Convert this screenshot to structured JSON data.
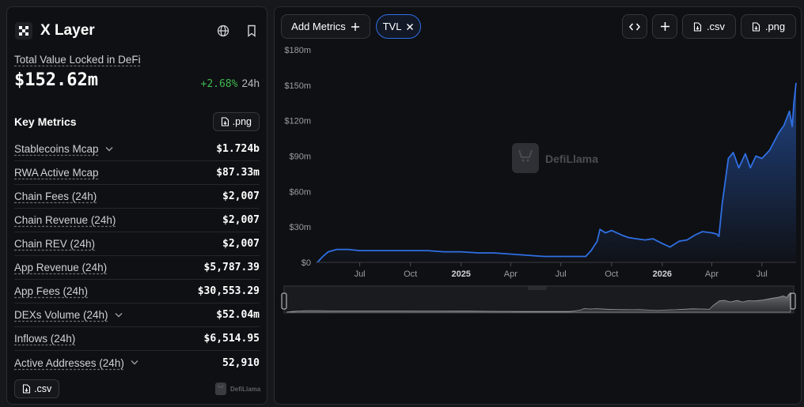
{
  "chain": {
    "name": "X Layer"
  },
  "tvl": {
    "label": "Total Value Locked in DeFi",
    "value": "$152.62m",
    "change": "+2.68%",
    "period": "24h"
  },
  "key_metrics": {
    "title": "Key Metrics",
    "png_label": ".png",
    "csv_label": ".csv",
    "items": [
      {
        "label": "Stablecoins Mcap",
        "value": "$1.724b",
        "expandable": true
      },
      {
        "label": "RWA Active Mcap",
        "value": "$87.33m",
        "expandable": false
      },
      {
        "label": "Chain Fees (24h)",
        "value": "$2,007",
        "expandable": false
      },
      {
        "label": "Chain Revenue (24h)",
        "value": "$2,007",
        "expandable": false
      },
      {
        "label": "Chain REV (24h)",
        "value": "$2,007",
        "expandable": false
      },
      {
        "label": "App Revenue (24h)",
        "value": "$5,787.39",
        "expandable": false
      },
      {
        "label": "App Fees (24h)",
        "value": "$30,553.29",
        "expandable": false
      },
      {
        "label": "DEXs Volume (24h)",
        "value": "$52.04m",
        "expandable": true
      },
      {
        "label": "Inflows (24h)",
        "value": "$6,514.95",
        "expandable": false
      },
      {
        "label": "Active Addresses (24h)",
        "value": "52,910",
        "expandable": true
      }
    ]
  },
  "toolbar": {
    "add_metrics": "Add Metrics",
    "tvl_chip": "TVL",
    "csv": ".csv",
    "png": ".png"
  },
  "watermark": "DefiLlama",
  "colors": {
    "line": "#2f6fe3",
    "positive": "#3fb950",
    "background": "#0f1013"
  },
  "chart_data": {
    "type": "area",
    "series": [
      {
        "x": [
          "2024-04-15",
          "2024-04-25",
          "2024-05-05",
          "2024-05-20",
          "2024-06-10",
          "2024-07-01",
          "2024-08-01",
          "2024-09-01",
          "2024-10-01",
          "2024-11-01",
          "2024-12-01",
          "2025-01-01",
          "2025-02-01",
          "2025-03-01",
          "2025-04-01",
          "2025-05-01",
          "2025-06-01",
          "2025-07-01",
          "2025-08-01",
          "2025-08-15",
          "2025-08-25",
          "2025-09-05",
          "2025-09-10",
          "2025-09-20",
          "2025-10-01",
          "2025-10-20",
          "2025-11-01",
          "2025-11-15",
          "2025-12-01",
          "2025-12-15",
          "2026-01-01",
          "2026-01-15",
          "2026-02-01",
          "2026-02-15",
          "2026-03-01",
          "2026-03-15",
          "2026-04-01",
          "2026-04-10",
          "2026-04-14",
          "2026-04-20",
          "2026-05-01",
          "2026-05-10",
          "2026-05-20",
          "2026-06-01",
          "2026-06-10",
          "2026-06-20",
          "2026-07-01",
          "2026-07-15",
          "2026-08-01",
          "2026-08-10",
          "2026-08-20",
          "2026-08-25",
          "2026-08-28",
          "2026-09-01"
        ],
        "values": [
          0,
          5,
          9,
          11,
          11,
          10,
          10,
          10,
          10,
          10,
          9,
          9,
          8,
          8,
          7,
          6,
          5,
          5,
          5,
          5,
          10,
          18,
          28,
          25,
          27,
          23,
          21,
          20,
          19,
          20,
          16,
          13,
          18,
          19,
          23,
          26,
          25,
          24,
          22,
          50,
          88,
          93,
          80,
          92,
          80,
          90,
          88,
          95,
          110,
          116,
          128,
          115,
          135,
          152
        ]
      }
    ],
    "ylabel_ticks": [
      "$0",
      "$30m",
      "$60m",
      "$90m",
      "$120m",
      "$150m",
      "$180m"
    ],
    "ylim": [
      0,
      180
    ],
    "xlim": [
      "2024-04-15",
      "2026-09-01"
    ],
    "x_ticks": [
      {
        "label": "Jul",
        "date": "2024-07-01",
        "bold": false
      },
      {
        "label": "Oct",
        "date": "2024-10-01",
        "bold": false
      },
      {
        "label": "2025",
        "date": "2025-01-01",
        "bold": true
      },
      {
        "label": "Apr",
        "date": "2025-04-01",
        "bold": false
      },
      {
        "label": "Jul",
        "date": "2025-07-01",
        "bold": false
      },
      {
        "label": "Oct",
        "date": "2025-10-01",
        "bold": false
      },
      {
        "label": "2026",
        "date": "2026-01-01",
        "bold": true
      },
      {
        "label": "Apr",
        "date": "2026-04-01",
        "bold": false
      },
      {
        "label": "Jul",
        "date": "2026-07-01",
        "bold": false
      }
    ]
  }
}
